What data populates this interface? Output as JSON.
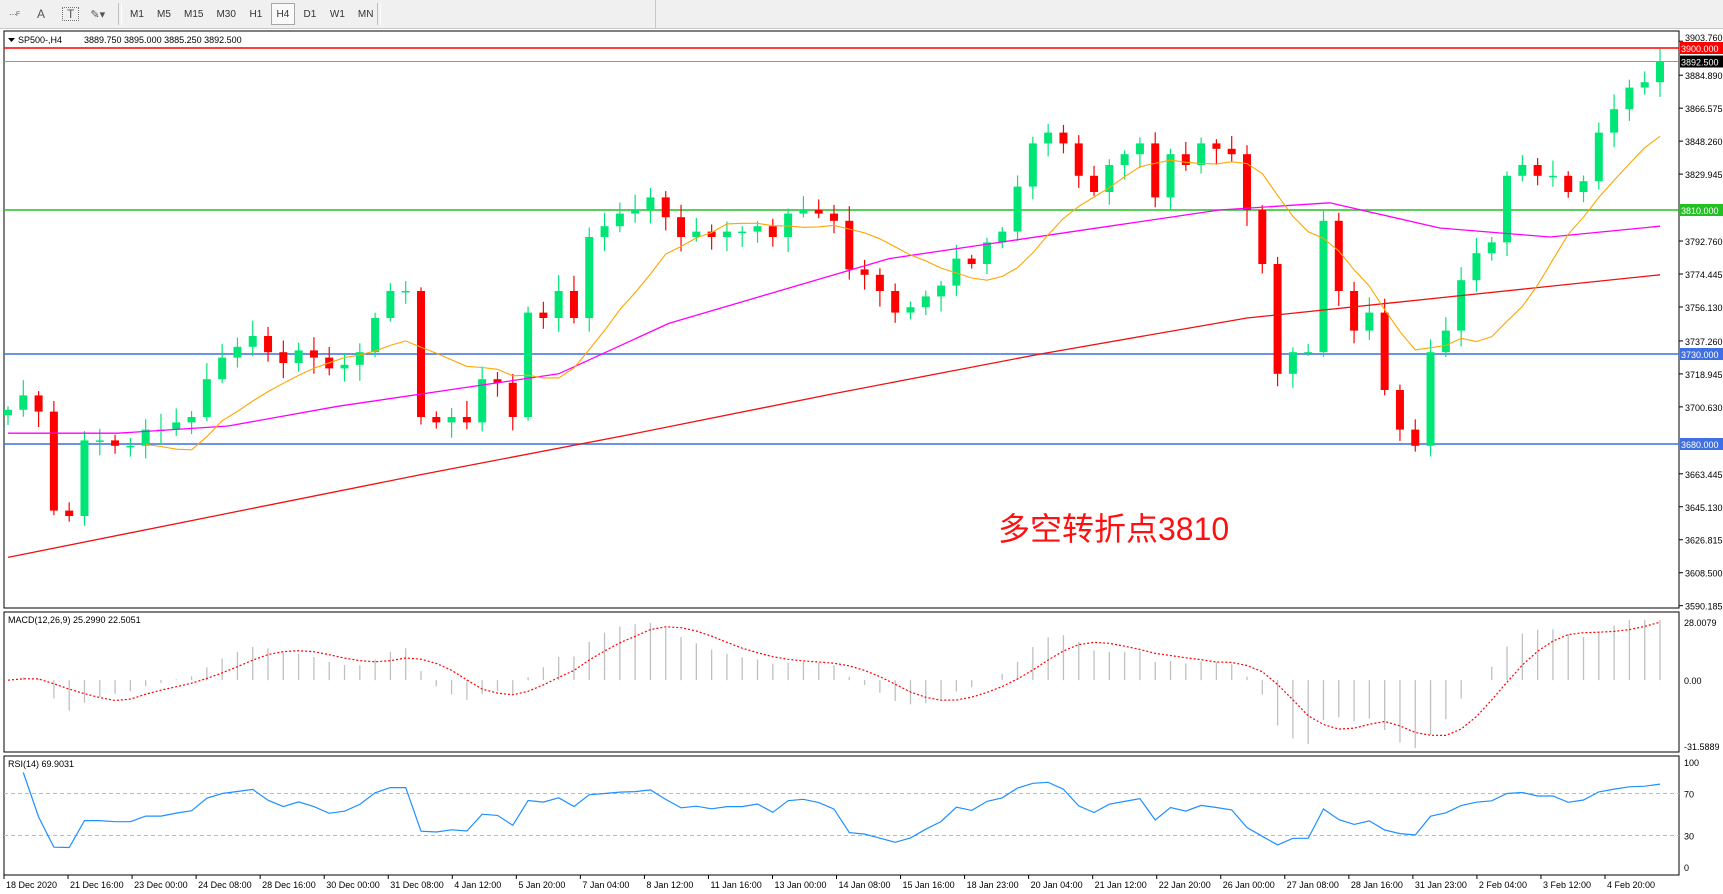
{
  "toolbar": {
    "tools": [
      {
        "name": "fibo-fan-icon",
        "label": "F"
      },
      {
        "name": "text-icon",
        "label": "A"
      },
      {
        "name": "text-label-icon",
        "label": "T"
      },
      {
        "name": "arrows-icon",
        "label": "▾"
      }
    ],
    "timeframes": [
      "M1",
      "M5",
      "M15",
      "M30",
      "H1",
      "H4",
      "D1",
      "W1",
      "MN"
    ],
    "active_timeframe": "H4"
  },
  "header": {
    "symbol": "SP500-,H4",
    "ohlc": "3889.750 3895.000 3885.250 3892.500"
  },
  "annotation": "多空转折点3810",
  "colors": {
    "bull": "#00e676",
    "bear": "#ff0000",
    "ma_fast": "#ffa500",
    "ma_mid": "#ff00ff",
    "ma_slow": "#ee1111",
    "line_3900": "#ff0000",
    "line_3810": "#22c022",
    "line_blue": "#3f6fe0",
    "rsi": "#1e90ff",
    "macd_signal": "#ff0000",
    "macd_hist": "#c0c0c0"
  },
  "chart_data": {
    "type": "candlestick",
    "symbol": "SP500-",
    "timeframe": "H4",
    "ylim": [
      3590.185,
      3903.76
    ],
    "price_axis_labels": [
      "3903.760",
      "3884.890",
      "3866.575",
      "3848.260",
      "3829.945",
      "3792.760",
      "3774.445",
      "3756.130",
      "3737.260",
      "3718.945",
      "3700.630",
      "3663.445",
      "3645.130",
      "3626.815",
      "3608.500",
      "3590.185"
    ],
    "horizontal_lines": [
      {
        "price": 3900.0,
        "label": "3900.000",
        "color": "line_3900"
      },
      {
        "price": 3892.5,
        "label": "3892.500",
        "color": "current"
      },
      {
        "price": 3810.0,
        "label": "3810.000",
        "color": "line_3810"
      },
      {
        "price": 3730.0,
        "label": "3730.000",
        "color": "line_blue"
      },
      {
        "price": 3680.0,
        "label": "3680.000",
        "color": "line_blue"
      }
    ],
    "closes": [
      3699,
      3707,
      3698,
      3643,
      3640,
      3682,
      3682,
      3679,
      3679,
      3688,
      3688,
      3692,
      3695,
      3716,
      3728,
      3734,
      3740,
      3731,
      3725,
      3732,
      3728,
      3722,
      3724,
      3731,
      3750,
      3765,
      3765,
      3695,
      3692,
      3695,
      3692,
      3716,
      3714,
      3695,
      3753,
      3750,
      3765,
      3750,
      3795,
      3801,
      3808,
      3810,
      3817,
      3806,
      3795,
      3798,
      3795,
      3798,
      3798,
      3801,
      3795,
      3808,
      3810,
      3808,
      3804,
      3777,
      3774,
      3765,
      3753,
      3756,
      3762,
      3768,
      3783,
      3780,
      3792,
      3798,
      3823,
      3847,
      3853,
      3847,
      3829,
      3820,
      3835,
      3841,
      3847,
      3817,
      3841,
      3835,
      3847,
      3844,
      3841,
      3810,
      3780,
      3719,
      3731,
      3731,
      3804,
      3765,
      3743,
      3753,
      3710,
      3688,
      3679,
      3731,
      3743,
      3771,
      3786,
      3792,
      3829,
      3835,
      3829,
      3829,
      3820,
      3826,
      3853,
      3866,
      3878,
      3881,
      3892.5
    ],
    "ma_slow_path": [
      3617,
      3640,
      3663,
      3685,
      3708,
      3730,
      3750,
      3762,
      3774
    ],
    "ma_mid_path": [
      3686,
      3686,
      3690,
      3701,
      3710,
      3719,
      3747,
      3765,
      3783,
      3792,
      3801,
      3810,
      3814,
      3800,
      3795,
      3801
    ],
    "macd": {
      "label": "MACD(12,26,9) 25.2990 22.5051",
      "axis": [
        "28.0079",
        "0.00",
        "-31.5889"
      ],
      "range": [
        -31.5889,
        28.0079
      ]
    },
    "rsi": {
      "label": "RSI(14) 69.9031",
      "axis": [
        "100",
        "70",
        "30",
        "0"
      ],
      "levels": [
        70,
        30
      ]
    },
    "x_labels": [
      "18 Dec 2020",
      "21 Dec 16:00",
      "23 Dec 00:00",
      "24 Dec 08:00",
      "28 Dec 16:00",
      "30 Dec 00:00",
      "31 Dec 08:00",
      "4 Jan 12:00",
      "5 Jan 20:00",
      "7 Jan 04:00",
      "8 Jan 12:00",
      "11 Jan 16:00",
      "13 Jan 00:00",
      "14 Jan 08:00",
      "15 Jan 16:00",
      "18 Jan 23:00",
      "20 Jan 04:00",
      "21 Jan 12:00",
      "22 Jan 20:00",
      "26 Jan 00:00",
      "27 Jan 08:00",
      "28 Jan 16:00",
      "31 Jan 23:00",
      "2 Feb 04:00",
      "3 Feb 12:00",
      "4 Feb 20:00"
    ]
  }
}
